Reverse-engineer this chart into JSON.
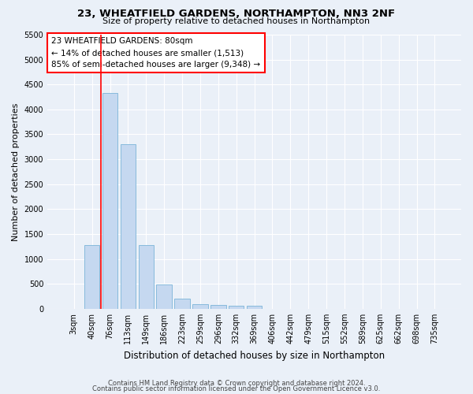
{
  "title": "23, WHEATFIELD GARDENS, NORTHAMPTON, NN3 2NF",
  "subtitle": "Size of property relative to detached houses in Northampton",
  "xlabel": "Distribution of detached houses by size in Northampton",
  "ylabel": "Number of detached properties",
  "bin_labels": [
    "3sqm",
    "40sqm",
    "76sqm",
    "113sqm",
    "149sqm",
    "186sqm",
    "223sqm",
    "259sqm",
    "296sqm",
    "332sqm",
    "369sqm",
    "406sqm",
    "442sqm",
    "479sqm",
    "515sqm",
    "552sqm",
    "589sqm",
    "625sqm",
    "662sqm",
    "698sqm",
    "735sqm"
  ],
  "bar_values": [
    0,
    1270,
    4330,
    3300,
    1280,
    490,
    210,
    90,
    75,
    60,
    55,
    0,
    0,
    0,
    0,
    0,
    0,
    0,
    0,
    0,
    0
  ],
  "bar_color": "#c5d8f0",
  "bar_edge_color": "#7ab4d8",
  "annotation_title": "23 WHEATFIELD GARDENS: 80sqm",
  "annotation_line1": "← 14% of detached houses are smaller (1,513)",
  "annotation_line2": "85% of semi-detached houses are larger (9,348) →",
  "box_color": "red",
  "ylim": [
    0,
    5500
  ],
  "yticks": [
    0,
    500,
    1000,
    1500,
    2000,
    2500,
    3000,
    3500,
    4000,
    4500,
    5000,
    5500
  ],
  "footer_line1": "Contains HM Land Registry data © Crown copyright and database right 2024.",
  "footer_line2": "Contains public sector information licensed under the Open Government Licence v3.0.",
  "bg_color": "#eaf0f8",
  "plot_bg_color": "#eaf0f8",
  "grid_color": "#ffffff",
  "red_line_x": 1.5,
  "title_fontsize": 9.5,
  "subtitle_fontsize": 8,
  "ylabel_fontsize": 8,
  "xlabel_fontsize": 8.5,
  "tick_fontsize": 7,
  "annotation_fontsize": 7.5,
  "footer_fontsize": 6
}
